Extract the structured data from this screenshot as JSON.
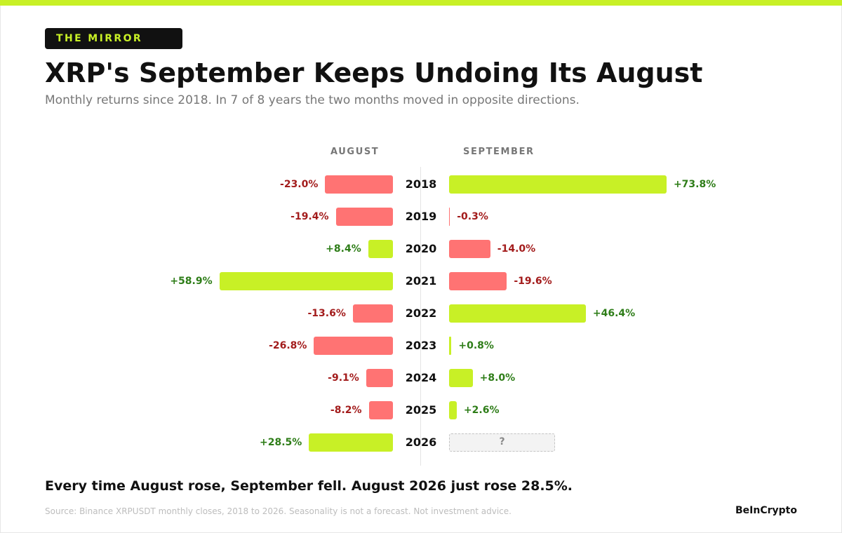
{
  "badge": "THE MIRROR",
  "title": "XRP's September Keeps Undoing Its August",
  "subtitle": "Monthly returns since 2018. In 7 of 8 years the two months moved in opposite directions.",
  "column_headers": {
    "left": "AUGUST",
    "right": "SEPTEMBER"
  },
  "takeaway": "Every time August rose, September fell. August 2026 just rose 28.5%.",
  "source": "Source: Binance XRPUSDT monthly closes, 2018 to 2026. Seasonality is not a forecast. Not investment advice.",
  "brand": "BeInCrypto",
  "colors": {
    "accent": "#c8f026",
    "positive_bar": "#c8f026",
    "negative_bar": "#ff7373",
    "positive_text": "#2e7d18",
    "negative_text": "#a31c1c"
  },
  "chart_data": {
    "type": "bar",
    "orientation": "horizontal-diverging",
    "categories": [
      "2018",
      "2019",
      "2020",
      "2021",
      "2022",
      "2023",
      "2024",
      "2025",
      "2026"
    ],
    "series": [
      {
        "name": "AUGUST",
        "values": [
          -23.0,
          -19.4,
          8.4,
          58.9,
          -13.6,
          -26.8,
          -9.1,
          -8.2,
          28.5
        ],
        "labels": [
          "-23.0%",
          "-19.4%",
          "+8.4%",
          "+58.9%",
          "-13.6%",
          "-26.8%",
          "-9.1%",
          "-8.2%",
          "+28.5%"
        ]
      },
      {
        "name": "SEPTEMBER",
        "values": [
          73.8,
          -0.3,
          -14.0,
          -19.6,
          46.4,
          0.8,
          8.0,
          2.6,
          null
        ],
        "labels": [
          "+73.8%",
          "-0.3%",
          "-14.0%",
          "-19.6%",
          "+46.4%",
          "+0.8%",
          "+8.0%",
          "+2.6%",
          "?"
        ]
      }
    ],
    "unit": "%",
    "grid": false,
    "legend": "none"
  }
}
